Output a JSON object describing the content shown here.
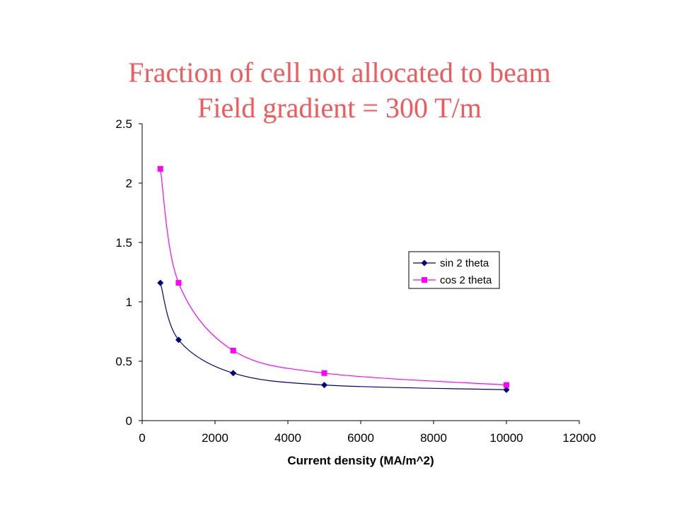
{
  "chart_data": {
    "type": "line",
    "title": "Fraction of cell not allocated to beam",
    "subtitle": "Field gradient = 300 T/m",
    "xlabel": "Current density (MA/m^2)",
    "ylabel": "",
    "xlim": [
      0,
      12000
    ],
    "ylim": [
      0,
      2.5
    ],
    "x_ticks": [
      "0",
      "2000",
      "4000",
      "6000",
      "8000",
      "10000",
      "12000"
    ],
    "y_ticks": [
      "0",
      "0.5",
      "1",
      "1.5",
      "2",
      "2.5"
    ],
    "x": [
      500,
      1000,
      2500,
      5000,
      10000
    ],
    "series": [
      {
        "name": "sin 2 theta",
        "values": [
          1.16,
          0.68,
          0.4,
          0.3,
          0.26
        ],
        "color": "#000080",
        "marker": "diamond"
      },
      {
        "name": "cos 2 theta",
        "values": [
          2.12,
          1.16,
          0.59,
          0.4,
          0.3
        ],
        "color": "#ff00ff",
        "marker": "square"
      }
    ],
    "smoothed": true,
    "grid": false,
    "legend_position": "right"
  }
}
